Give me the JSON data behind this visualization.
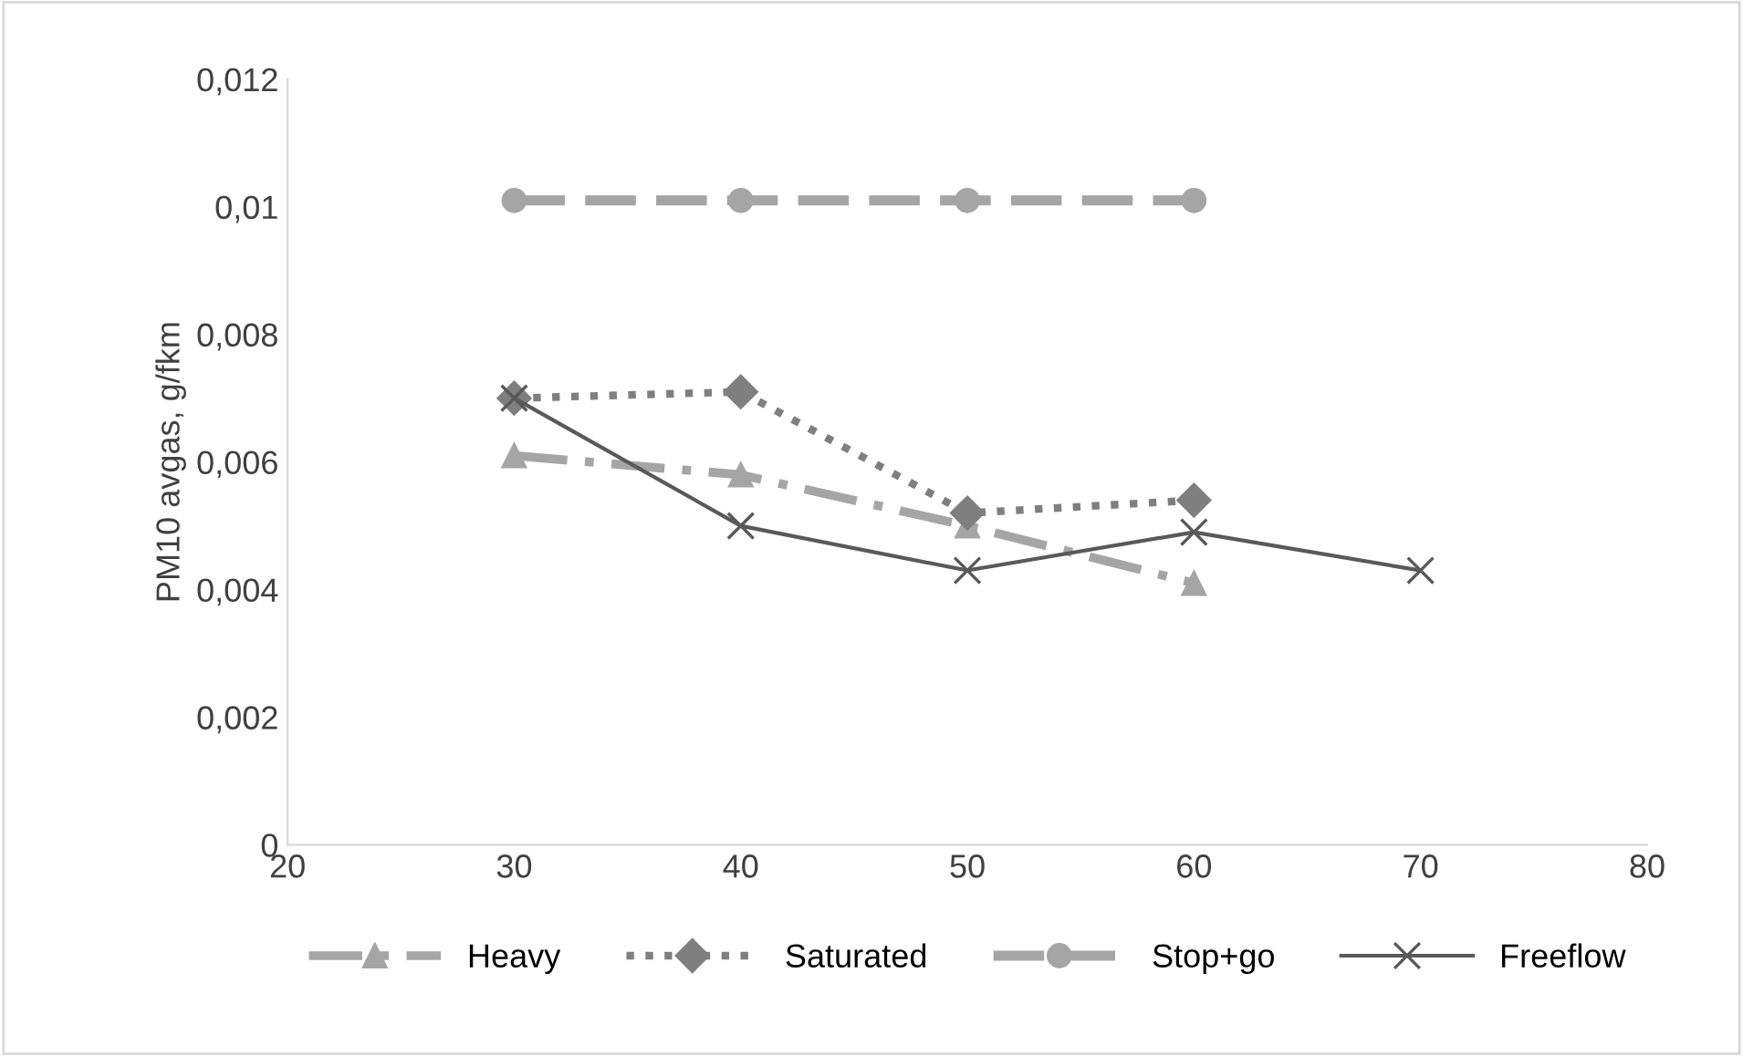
{
  "chart_data": {
    "type": "line",
    "ylabel": "PM10 avgas, g/fkm",
    "xlim": [
      20,
      80
    ],
    "xticks": [
      20,
      30,
      40,
      50,
      60,
      70,
      80
    ],
    "ylim": [
      0,
      0.012
    ],
    "yticks": [
      0,
      {
        "value": 0.002,
        "label": "0,002"
      },
      {
        "value": 0.004,
        "label": "0,004"
      },
      {
        "value": 0.006,
        "label": "0,006"
      },
      {
        "value": 0.008,
        "label": "0,008"
      },
      {
        "value": 0.01,
        "label": "0,01"
      },
      {
        "value": 0.012,
        "label": "0,012"
      }
    ],
    "grid": false,
    "legend": "bottom",
    "series": [
      {
        "name": "Heavy",
        "color": "#a5a5a5",
        "marker": "triangle",
        "line_style": "dashdot",
        "x": [
          30,
          40,
          50,
          60
        ],
        "values": [
          0.0061,
          0.0058,
          0.005,
          0.0041
        ]
      },
      {
        "name": "Saturated",
        "color": "#7f7f7f",
        "marker": "diamond",
        "line_style": "dotted",
        "x": [
          30,
          40,
          50,
          60
        ],
        "values": [
          0.007,
          0.0071,
          0.0052,
          0.0054
        ]
      },
      {
        "name": "Stop+go",
        "color": "#a5a5a5",
        "marker": "circle",
        "line_style": "dashed",
        "x": [
          30,
          40,
          50,
          60
        ],
        "values": [
          0.0101,
          0.0101,
          0.0101,
          0.0101
        ]
      },
      {
        "name": "Freeflow",
        "color": "#595959",
        "marker": "cross",
        "line_style": "solid",
        "x": [
          30,
          40,
          50,
          60,
          70
        ],
        "values": [
          0.007,
          0.005,
          0.0043,
          0.0049,
          0.0043
        ]
      }
    ]
  }
}
